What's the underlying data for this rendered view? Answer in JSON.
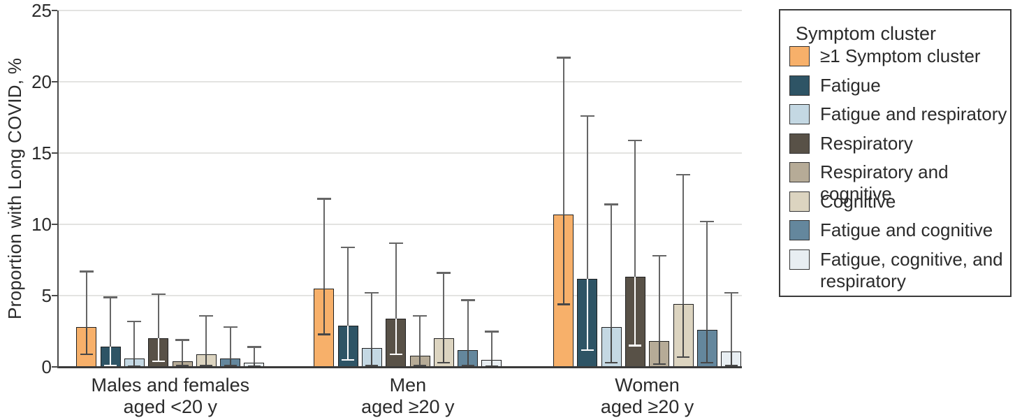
{
  "chart_data": {
    "type": "bar",
    "title": "",
    "ylabel": "Proportion with Long COVID, %",
    "xlabel": "",
    "ylim": [
      0,
      25
    ],
    "yticks": [
      0,
      5,
      10,
      15,
      20,
      25
    ],
    "grid": "horizontal",
    "error_bars": true,
    "categories": [
      "Males and females\naged <20 y",
      "Men\naged ≥20 y",
      "Women\naged ≥20 y"
    ],
    "legend": {
      "title": "Symptom cluster",
      "position": "right"
    },
    "series": [
      {
        "name": "≥1 Symptom cluster",
        "color": "#F7B06A",
        "dark_fill": false,
        "values": [
          2.8,
          5.5,
          10.7
        ],
        "ci_low": [
          0.9,
          2.3,
          4.4
        ],
        "ci_high": [
          6.7,
          11.8,
          21.7
        ]
      },
      {
        "name": "Fatigue",
        "color": "#2E5465",
        "dark_fill": true,
        "values": [
          1.4,
          2.9,
          6.2
        ],
        "ci_low": [
          0.1,
          0.5,
          1.2
        ],
        "ci_high": [
          4.9,
          8.4,
          17.6
        ]
      },
      {
        "name": "Fatigue and respiratory",
        "color": "#C4D8E3",
        "dark_fill": false,
        "values": [
          0.6,
          1.3,
          2.8
        ],
        "ci_low": [
          0.05,
          0.1,
          0.3
        ],
        "ci_high": [
          3.2,
          5.2,
          11.4
        ]
      },
      {
        "name": "Respiratory",
        "color": "#585147",
        "dark_fill": true,
        "values": [
          2.0,
          3.4,
          6.3
        ],
        "ci_low": [
          0.4,
          0.9,
          1.5
        ],
        "ci_high": [
          5.1,
          8.7,
          15.9
        ]
      },
      {
        "name": "Respiratory and cognitive",
        "color": "#B6AB97",
        "dark_fill": false,
        "values": [
          0.4,
          0.8,
          1.8
        ],
        "ci_low": [
          0.1,
          0.1,
          0.2
        ],
        "ci_high": [
          1.9,
          3.6,
          7.8
        ]
      },
      {
        "name": "Cognitive",
        "color": "#DCD4C0",
        "dark_fill": false,
        "values": [
          0.9,
          2.0,
          4.4
        ],
        "ci_low": [
          0.1,
          0.3,
          0.7
        ],
        "ci_high": [
          3.6,
          6.6,
          13.5
        ]
      },
      {
        "name": "Fatigue and cognitive",
        "color": "#64879D",
        "dark_fill": false,
        "values": [
          0.6,
          1.2,
          2.6
        ],
        "ci_low": [
          0.1,
          0.1,
          0.3
        ],
        "ci_high": [
          2.8,
          4.7,
          10.2
        ]
      },
      {
        "name": "Fatigue, cognitive, and respiratory",
        "color": "#E8EEF2",
        "dark_fill": false,
        "values": [
          0.3,
          0.5,
          1.1
        ],
        "ci_low": [
          0.05,
          0.05,
          0.1
        ],
        "ci_high": [
          1.4,
          2.5,
          5.2
        ]
      }
    ],
    "style": {
      "grid_color": "#E3E3E1",
      "axis_color": "#4A4A4A",
      "text_color": "#2B2B2B",
      "bar_outline": "#1F1F1F",
      "whisker_color": "#666666",
      "whisker_inside_light_bars": "#474747",
      "whisker_inside_dark_bars": "#FFFFFF"
    }
  }
}
